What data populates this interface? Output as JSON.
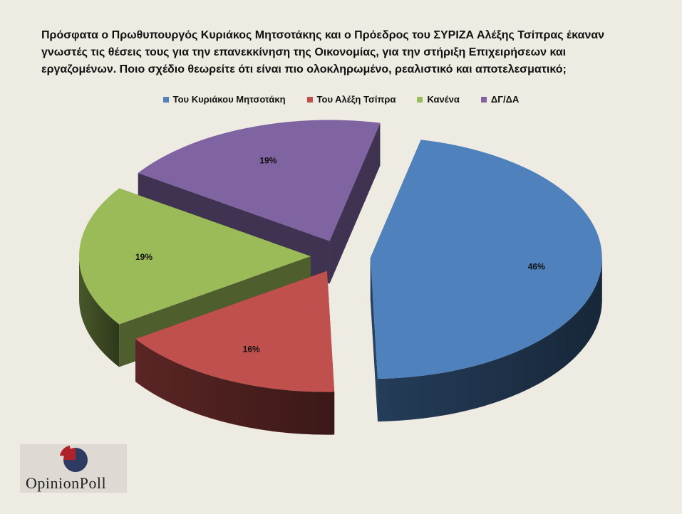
{
  "chart_data": {
    "type": "pie",
    "title": "Πρόσφατα ο Πρωθυπουργός Κυριάκος Μητσοτάκης και ο Πρόεδρος του ΣΥΡΙΖΑ Αλέξης Τσίπρας έκαναν\nγνωστές τις θέσεις τους για την επανεκκίνηση της Οικονομίας, για την στήριξη Επιχειρήσεων και\nεργαζομένων. Ποιο σχέδιο θεωρείτε ότι είναι πιο ολοκληρωμένο, ρεαλιστικό και αποτελεσματικό;",
    "legend_position": "top",
    "categories": [
      "Του Κυριάκου Μητσοτάκη",
      "Του Αλέξη Τσίπρα",
      "Κανένα",
      "ΔΓ/ΔΑ"
    ],
    "values": [
      46,
      16,
      19,
      19
    ],
    "labels": [
      "46%",
      "16%",
      "19%",
      "19%"
    ],
    "colors": [
      "#4f81bd",
      "#c0504d",
      "#9bbb59",
      "#8064a2"
    ],
    "style": "3d-exploded"
  },
  "logo": {
    "text": "OpinionPoll"
  }
}
